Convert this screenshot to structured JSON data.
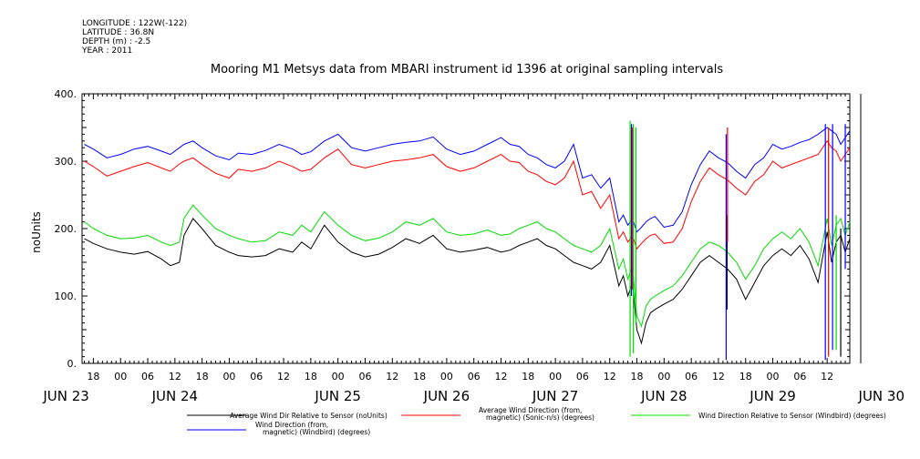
{
  "header_info": [
    "LONGITUDE : 122W(-122)",
    "LATITUDE : 36.8N",
    "DEPTH (m) : -2.5",
    "YEAR : 2011"
  ],
  "chart_data": {
    "type": "line",
    "title": "Mooring M1 Metsys data from MBARI instrument id 1396 at original sampling intervals",
    "ylabel": "noUnits",
    "ylim": [
      0,
      400
    ],
    "y_ticks": [
      "0.",
      "100.",
      "200.",
      "300.",
      "400."
    ],
    "y_tick_values": [
      0,
      100,
      200,
      300,
      400
    ],
    "x_hour_labels": [
      "18",
      "00",
      "06",
      "12",
      "18",
      "00",
      "06",
      "12",
      "18",
      "00",
      "06",
      "12",
      "18",
      "00",
      "06",
      "12",
      "18",
      "00",
      "06",
      "12",
      "18",
      "00",
      "06",
      "12",
      "18",
      "00",
      "06",
      "12"
    ],
    "x_hour_label_times": [
      18,
      24,
      30,
      36,
      42,
      48,
      54,
      60,
      66,
      72,
      78,
      84,
      90,
      96,
      102,
      108,
      114,
      120,
      126,
      132,
      138,
      144,
      150,
      156,
      162,
      168,
      174,
      180
    ],
    "x_day_labels": [
      "JUN 23",
      "JUN 24",
      "JUN 25",
      "JUN 26",
      "JUN 27",
      "JUN 28",
      "JUN 29",
      "JUN 30"
    ],
    "x_day_label_times": [
      12,
      36,
      72,
      96,
      120,
      144,
      168,
      192
    ],
    "xlim_hours": [
      15.5,
      185
    ],
    "x_units": "hours since 2011-06-23 00:00",
    "series": [
      {
        "name": "Average Wind Dir Relative to Sensor (noUnits)",
        "color": "#000000",
        "x": [
          16,
          18,
          21,
          24,
          27,
          30,
          33,
          35,
          37,
          38,
          40,
          42,
          45,
          48,
          50,
          53,
          56,
          59,
          62,
          64,
          66,
          69,
          72,
          75,
          78,
          81,
          84,
          87,
          90,
          93,
          96,
          99,
          102,
          105,
          108,
          110,
          112,
          114,
          116,
          118,
          120,
          122,
          124,
          126,
          128,
          130,
          132,
          134,
          135,
          136,
          137,
          138,
          139,
          140,
          141,
          142,
          144,
          146,
          148,
          150,
          152,
          154,
          156,
          158,
          160,
          162,
          164,
          166,
          168,
          170,
          172,
          174,
          176,
          178,
          180,
          181,
          182,
          183,
          184,
          185
        ],
        "y": [
          185,
          178,
          170,
          165,
          162,
          166,
          155,
          145,
          150,
          190,
          215,
          200,
          175,
          165,
          160,
          158,
          160,
          170,
          165,
          180,
          170,
          205,
          180,
          165,
          158,
          162,
          172,
          185,
          178,
          190,
          170,
          165,
          168,
          172,
          165,
          168,
          175,
          180,
          185,
          175,
          170,
          160,
          150,
          145,
          140,
          150,
          175,
          115,
          130,
          100,
          120,
          50,
          30,
          60,
          75,
          80,
          88,
          95,
          110,
          130,
          150,
          160,
          150,
          140,
          125,
          95,
          120,
          145,
          160,
          170,
          160,
          175,
          155,
          120,
          195,
          150,
          180,
          190,
          165,
          185
        ]
      },
      {
        "name": "Average Wind Direction (from, magnetic) (Sonic-n/s) (degrees)",
        "color": "#ff0000",
        "x": [
          16,
          18,
          21,
          24,
          27,
          30,
          33,
          35,
          37,
          38,
          40,
          42,
          45,
          48,
          50,
          53,
          56,
          59,
          62,
          64,
          66,
          69,
          72,
          75,
          78,
          81,
          84,
          87,
          90,
          93,
          96,
          99,
          102,
          105,
          108,
          110,
          112,
          114,
          116,
          118,
          120,
          122,
          124,
          126,
          128,
          130,
          132,
          134,
          135,
          136,
          137,
          138,
          139,
          140,
          141,
          142,
          144,
          146,
          148,
          150,
          152,
          154,
          156,
          158,
          160,
          162,
          164,
          166,
          168,
          170,
          172,
          174,
          176,
          178,
          180,
          181,
          182,
          183,
          184,
          185
        ],
        "y": [
          300,
          292,
          278,
          285,
          292,
          298,
          290,
          285,
          296,
          300,
          305,
          295,
          282,
          275,
          288,
          285,
          290,
          300,
          292,
          285,
          288,
          305,
          318,
          295,
          290,
          295,
          300,
          302,
          305,
          310,
          292,
          285,
          290,
          300,
          310,
          300,
          298,
          285,
          280,
          270,
          265,
          275,
          300,
          250,
          255,
          230,
          250,
          185,
          195,
          180,
          190,
          170,
          178,
          185,
          190,
          192,
          178,
          180,
          200,
          240,
          270,
          290,
          280,
          272,
          260,
          250,
          270,
          280,
          300,
          290,
          295,
          300,
          305,
          310,
          330,
          320,
          315,
          300,
          310,
          320
        ]
      },
      {
        "name": "Wind Direction Relative to Sensor (Windbird) (degrees)",
        "color": "#00dd00",
        "x": [
          16,
          18,
          21,
          24,
          27,
          30,
          33,
          35,
          37,
          38,
          40,
          42,
          45,
          48,
          50,
          53,
          56,
          59,
          62,
          64,
          66,
          69,
          72,
          75,
          78,
          81,
          84,
          87,
          90,
          93,
          96,
          99,
          102,
          105,
          108,
          110,
          112,
          114,
          116,
          118,
          120,
          122,
          124,
          126,
          128,
          130,
          132,
          134,
          135,
          136,
          137,
          138,
          139,
          140,
          141,
          142,
          144,
          146,
          148,
          150,
          152,
          154,
          156,
          158,
          160,
          162,
          164,
          166,
          168,
          170,
          172,
          174,
          176,
          178,
          180,
          181,
          182,
          183,
          184,
          185
        ],
        "y": [
          210,
          200,
          190,
          185,
          186,
          190,
          180,
          175,
          180,
          215,
          235,
          220,
          200,
          190,
          185,
          180,
          182,
          195,
          190,
          205,
          195,
          225,
          205,
          190,
          182,
          186,
          195,
          210,
          205,
          215,
          195,
          190,
          192,
          198,
          190,
          192,
          200,
          205,
          210,
          200,
          195,
          185,
          175,
          170,
          165,
          175,
          200,
          140,
          155,
          125,
          145,
          70,
          55,
          85,
          95,
          100,
          108,
          115,
          130,
          150,
          170,
          180,
          175,
          165,
          150,
          125,
          145,
          170,
          185,
          195,
          185,
          200,
          180,
          145,
          215,
          175,
          205,
          215,
          190,
          210
        ]
      },
      {
        "name": "Wind Direction (from, magnetic) (Windbird) (degrees)",
        "color": "#0000ff",
        "x": [
          16,
          18,
          21,
          24,
          27,
          30,
          33,
          35,
          37,
          38,
          40,
          42,
          45,
          48,
          50,
          53,
          56,
          59,
          62,
          64,
          66,
          69,
          72,
          75,
          78,
          81,
          84,
          87,
          90,
          93,
          96,
          99,
          102,
          105,
          108,
          110,
          112,
          114,
          116,
          118,
          120,
          122,
          124,
          126,
          128,
          130,
          132,
          134,
          135,
          136,
          137,
          138,
          139,
          140,
          141,
          142,
          144,
          146,
          148,
          150,
          152,
          154,
          156,
          158,
          160,
          162,
          164,
          166,
          168,
          170,
          172,
          174,
          176,
          178,
          180,
          181,
          182,
          183,
          184,
          185
        ],
        "y": [
          325,
          318,
          305,
          310,
          318,
          322,
          315,
          310,
          320,
          325,
          330,
          320,
          308,
          302,
          312,
          310,
          316,
          325,
          318,
          310,
          314,
          330,
          340,
          320,
          315,
          320,
          325,
          328,
          330,
          336,
          318,
          310,
          315,
          325,
          335,
          325,
          322,
          310,
          305,
          295,
          290,
          300,
          325,
          275,
          280,
          260,
          275,
          210,
          220,
          205,
          215,
          195,
          202,
          210,
          215,
          218,
          202,
          205,
          225,
          265,
          295,
          315,
          305,
          298,
          285,
          275,
          295,
          305,
          325,
          318,
          322,
          328,
          332,
          340,
          350,
          345,
          340,
          325,
          335,
          345
        ]
      }
    ],
    "spikes": [
      {
        "series": 2,
        "x": 136.5,
        "top": 360,
        "bottom": 10
      },
      {
        "series": 2,
        "x": 137.2,
        "top": 355,
        "bottom": 15
      },
      {
        "series": 2,
        "x": 137.8,
        "top": 350,
        "bottom": 60
      },
      {
        "series": 3,
        "x": 136.8,
        "top": 355,
        "bottom": 100
      },
      {
        "series": 1,
        "x": 137.0,
        "top": 350,
        "bottom": 110
      },
      {
        "series": 3,
        "x": 157.7,
        "top": 340,
        "bottom": 5
      },
      {
        "series": 0,
        "x": 157.9,
        "top": 220,
        "bottom": 80
      },
      {
        "series": 1,
        "x": 158.0,
        "top": 350,
        "bottom": 180
      },
      {
        "series": 3,
        "x": 179.6,
        "top": 355,
        "bottom": 5
      },
      {
        "series": 1,
        "x": 180.3,
        "top": 350,
        "bottom": 10
      },
      {
        "series": 3,
        "x": 181.2,
        "top": 355,
        "bottom": 20
      },
      {
        "series": 2,
        "x": 182.0,
        "top": 220,
        "bottom": 20
      },
      {
        "series": 0,
        "x": 183.0,
        "top": 200,
        "bottom": 10
      },
      {
        "series": 3,
        "x": 184.0,
        "top": 355,
        "bottom": 140
      }
    ],
    "legend_rows": [
      [
        0,
        1,
        2
      ],
      [
        3
      ]
    ],
    "legend_labels": [
      [
        "Average Wind Dir Relative to Sensor (noUnits)"
      ],
      [
        "Average Wind Direction (from,",
        "magnetic) (Sonic-n/s) (degrees)"
      ],
      [
        "Wind Direction Relative to Sensor (Windbird) (degrees)"
      ],
      [
        "Wind Direction (from,",
        "magnetic) (Windbird) (degrees)"
      ]
    ],
    "grid": false,
    "legend_position": "bottom"
  }
}
